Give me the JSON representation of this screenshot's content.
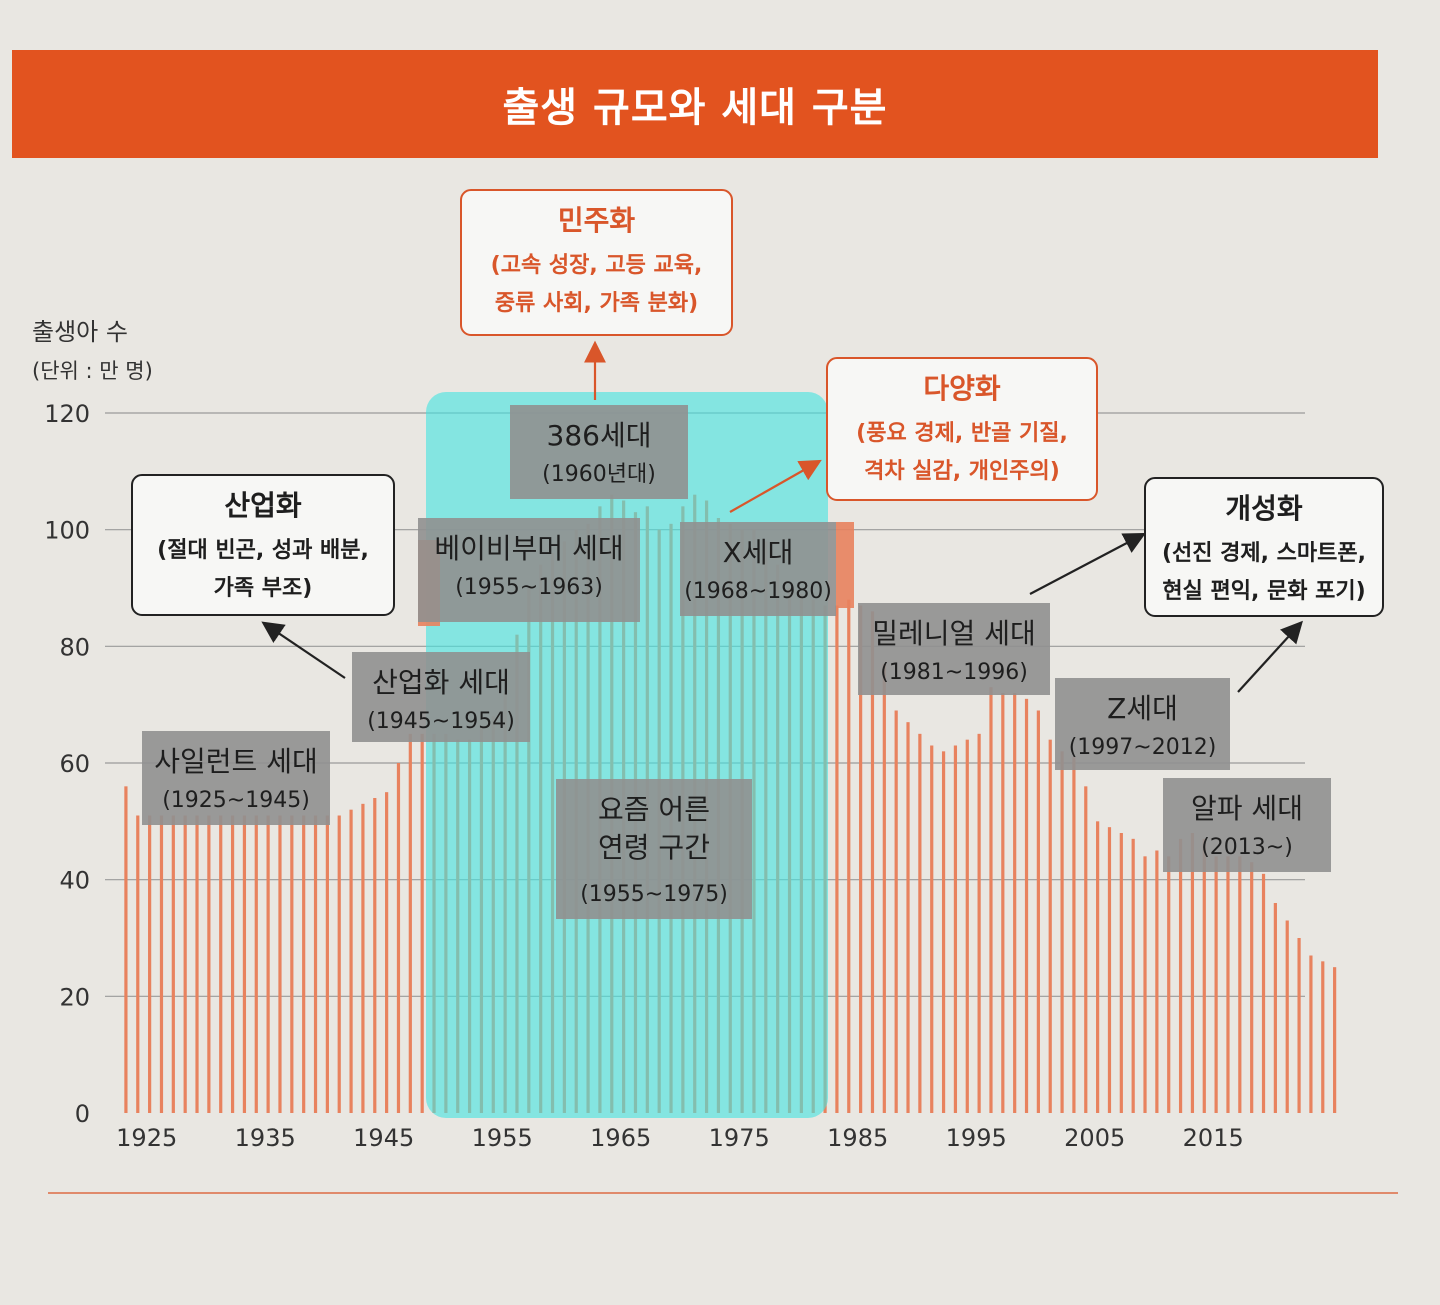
{
  "title": "출생 규모와 세대 구분",
  "chart_data": {
    "type": "bar",
    "unit_label_1": "출생아 수",
    "unit_label_2": "(단위 : 만 명)",
    "ylim": [
      0,
      120
    ],
    "yticks": [
      0,
      20,
      40,
      60,
      80,
      100,
      120
    ],
    "xticks": [
      1925,
      1935,
      1945,
      1955,
      1965,
      1975,
      1985,
      1995,
      2005,
      2015
    ],
    "x_range": [
      1923,
      2023
    ],
    "values": [
      56,
      51,
      51,
      51,
      51,
      51,
      51,
      51,
      51,
      51,
      51,
      51,
      51,
      51,
      51,
      51,
      51,
      51,
      51,
      52,
      53,
      54,
      55,
      60,
      65,
      65,
      65,
      65,
      64,
      64,
      66,
      68,
      72,
      82,
      90,
      94,
      96,
      98,
      100,
      101,
      104,
      106,
      105,
      103,
      104,
      100,
      101,
      104,
      106,
      105,
      102,
      101,
      100,
      100,
      98,
      94,
      90,
      89,
      88,
      87,
      87,
      88,
      87,
      86,
      77,
      69,
      67,
      65,
      63,
      62,
      63,
      64,
      65,
      73,
      72,
      72,
      71,
      69,
      64,
      62,
      61,
      56,
      50,
      49,
      48,
      47,
      44,
      45,
      44,
      47,
      48,
      47,
      44,
      44,
      44,
      43,
      41,
      36,
      33,
      30,
      27,
      26,
      25
    ],
    "generations": [
      {
        "name": "사일런트 세대",
        "years": "(1925~1945)"
      },
      {
        "name": "산업화 세대",
        "years": "(1945~1954)"
      },
      {
        "name": "베이비부머 세대",
        "years": "(1955~1963)"
      },
      {
        "name": "386세대",
        "years": "(1960년대)"
      },
      {
        "name": "X세대",
        "years": "(1968~1980)"
      },
      {
        "name": "밀레니얼 세대",
        "years": "(1981~1996)"
      },
      {
        "name": "Z세대",
        "years": "(1997~2012)"
      },
      {
        "name": "알파 세대",
        "years": "(2013~)"
      },
      {
        "name": "요즘 어른\n연령 구간",
        "years": "(1955~1975)"
      }
    ],
    "eras": [
      {
        "title": "산업화",
        "desc": [
          "(절대 빈곤, 성과 배분,",
          "가족 부조)"
        ]
      },
      {
        "title": "민주화",
        "desc": [
          "(고속 성장, 고등 교육,",
          "중류 사회, 가족 분화)"
        ]
      },
      {
        "title": "다양화",
        "desc": [
          "(풍요 경제, 반골 기질,",
          "격차 실감, 개인주의)"
        ]
      },
      {
        "title": "개성화",
        "desc": [
          "(선진 경제, 스마트폰,",
          "현실 편익, 문화 포기)"
        ]
      }
    ],
    "colors": {
      "bar": "#e8825e",
      "banner": "#e2531f",
      "highlight": "#46e4e0",
      "accent": "#d9562a"
    }
  }
}
